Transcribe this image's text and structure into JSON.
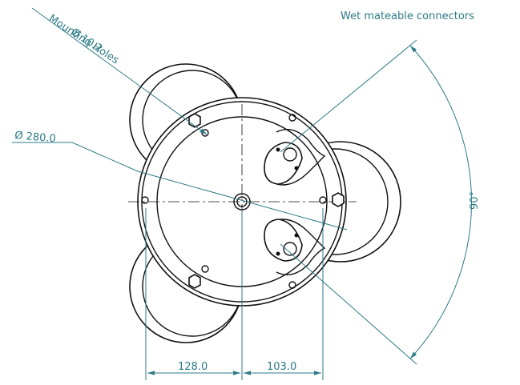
{
  "labels": {
    "hole_diameter": "Ø 10.2",
    "hole_name": "Mounting Holes",
    "flange_diameter": "Ø 280.0",
    "connectors": "Wet mateable connectors",
    "angle": "90°"
  },
  "dimensions": {
    "left": "128.0",
    "right": "103.0"
  }
}
